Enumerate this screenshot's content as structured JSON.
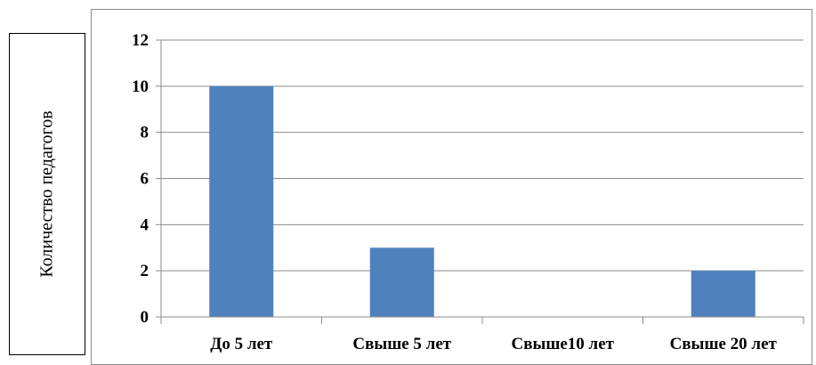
{
  "chart_data": {
    "type": "bar",
    "categories": [
      "До 5 лет",
      "Свыше 5 лет",
      "Свыше10 лет",
      "Свыше 20 лет"
    ],
    "values": [
      10,
      3,
      0,
      2
    ],
    "ylabel": "Количество педагогов",
    "ylim": [
      0,
      12
    ],
    "yticks": [
      0,
      2,
      4,
      6,
      8,
      10,
      12
    ],
    "grid": true,
    "legend": "none",
    "bar_color": "#4f81bd"
  }
}
